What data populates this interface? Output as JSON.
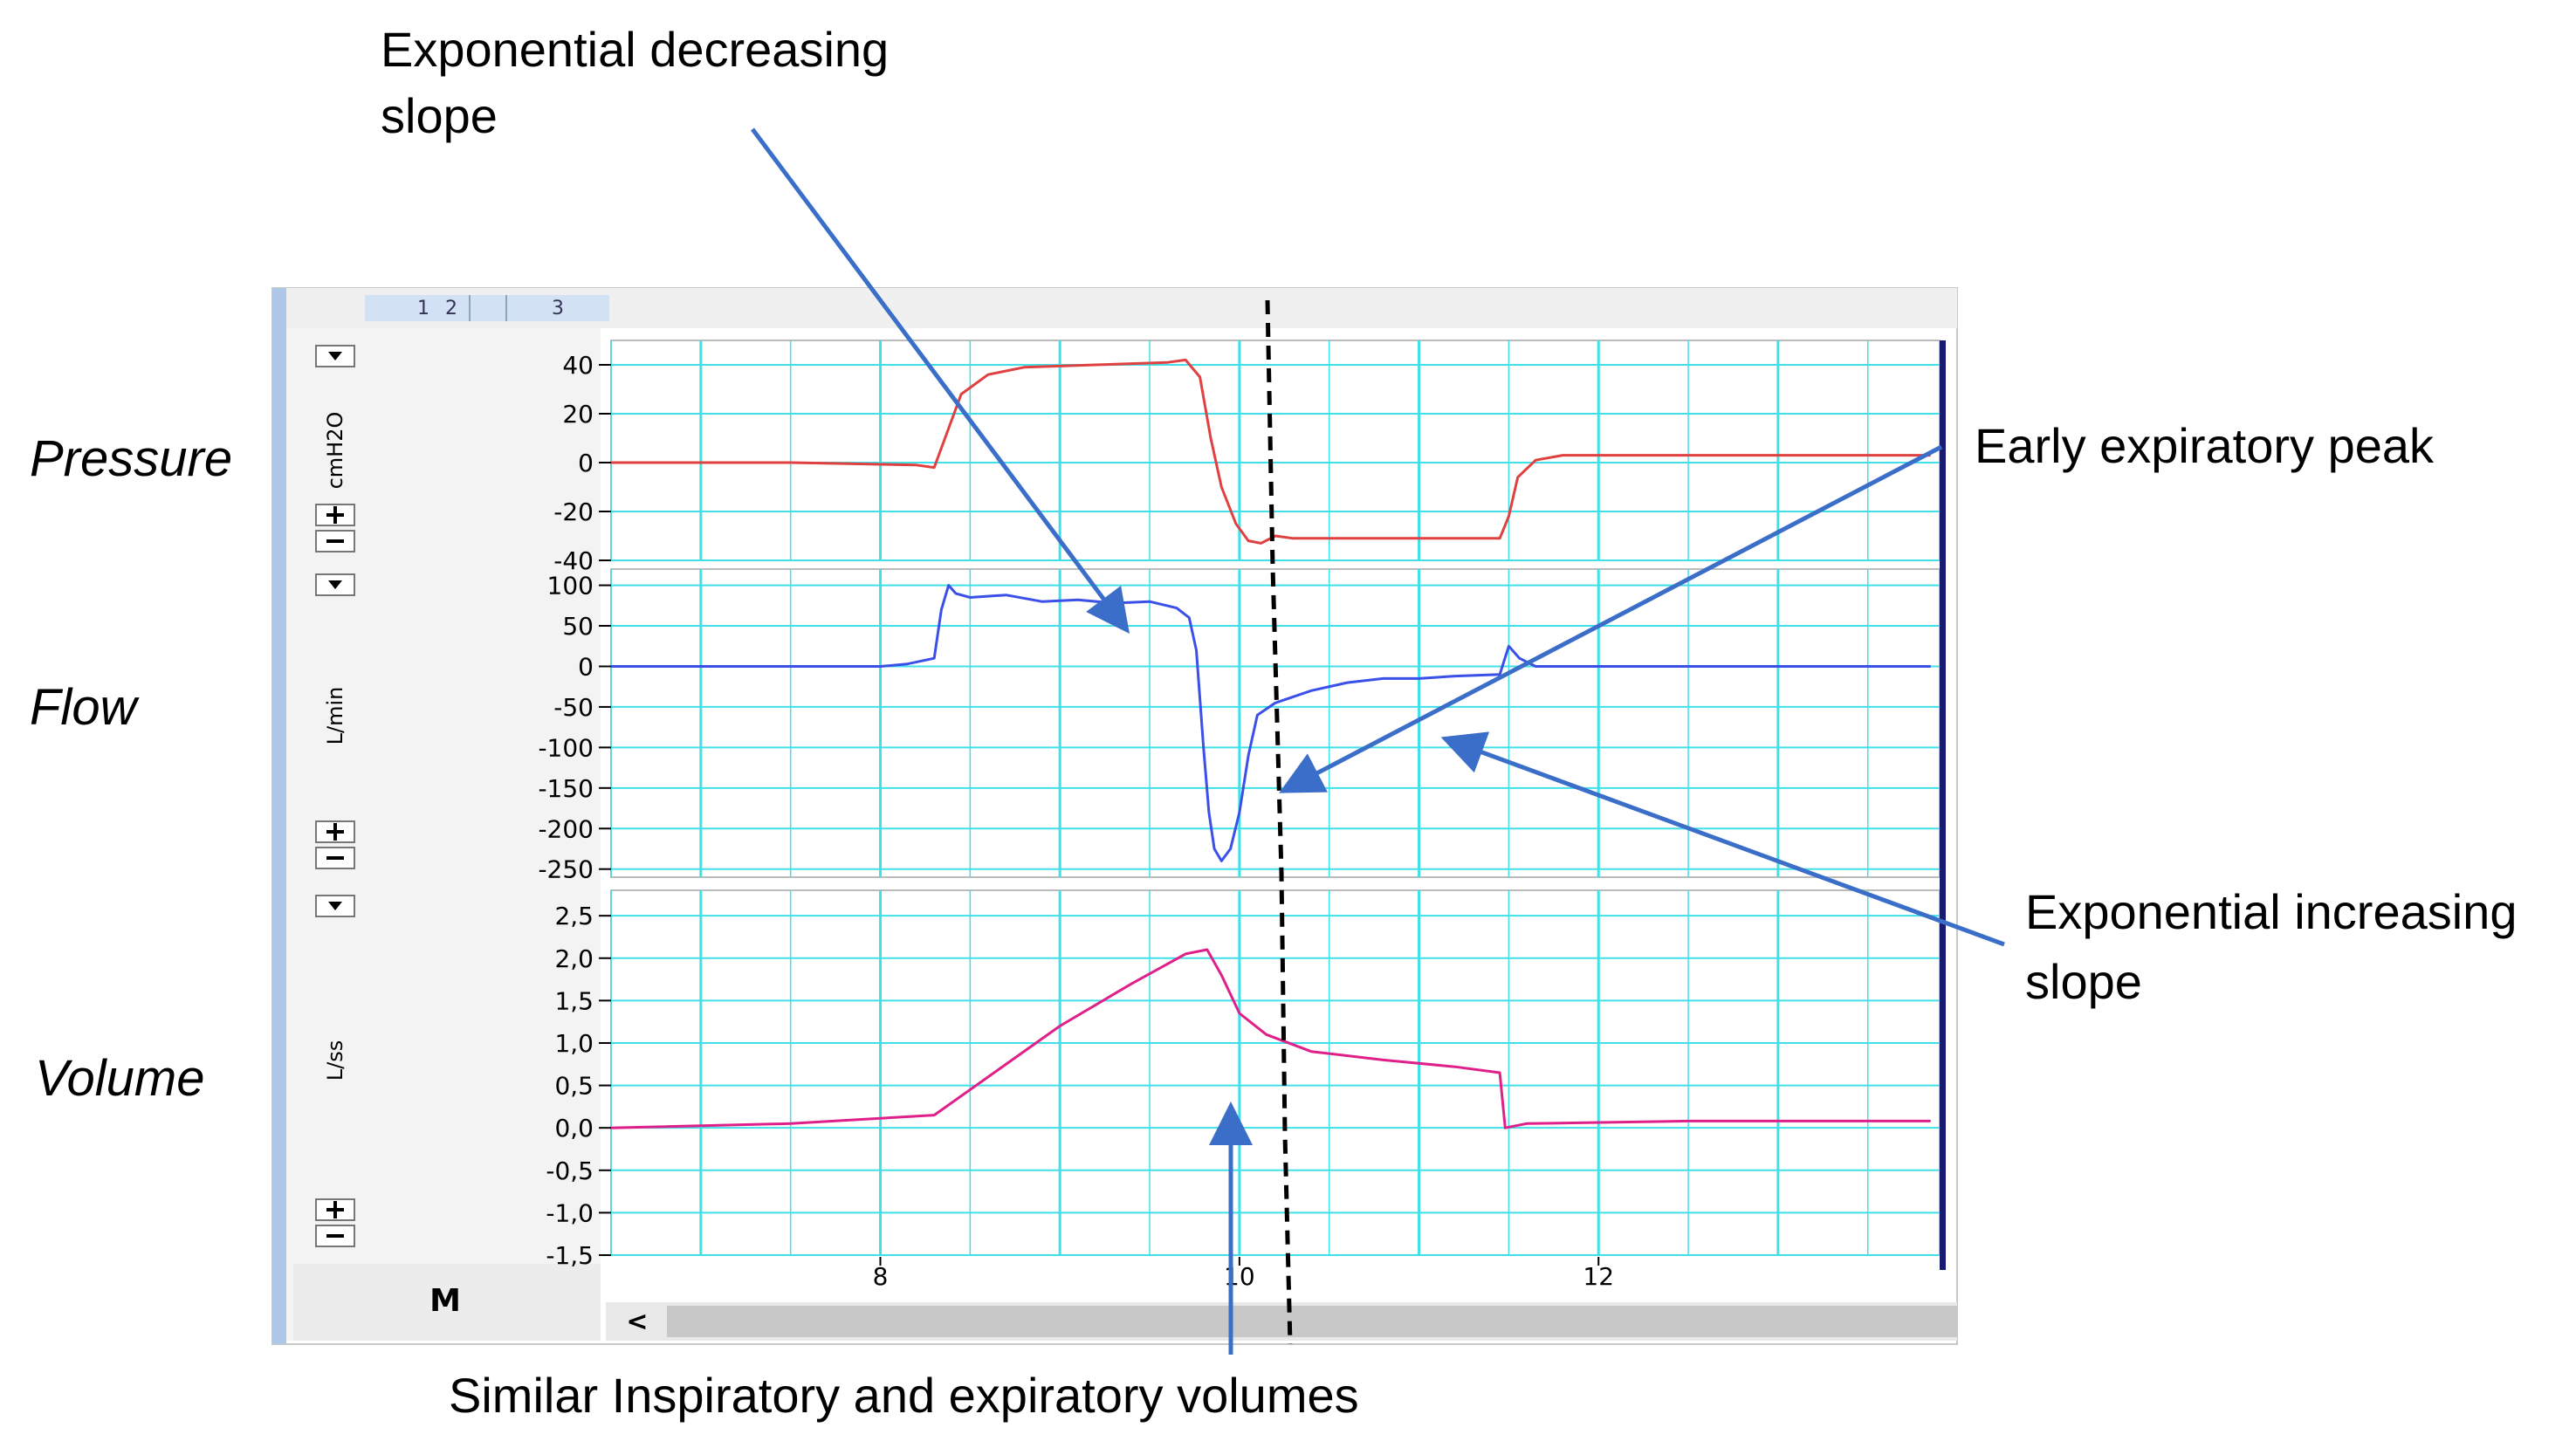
{
  "toolbar": {
    "tabs": [
      "1",
      "2",
      "3"
    ],
    "scroll_left": "<"
  },
  "side_labels": [
    "Pressure",
    "Flow",
    "Volume"
  ],
  "annotations": {
    "top": [
      "Exponential decreasing",
      "slope"
    ],
    "peak": "Early expiratory peak",
    "increasing": [
      "Exponential increasing",
      "slope"
    ],
    "bottom": "Similar Inspiratory and expiratory volumes"
  },
  "colors": {
    "pressure": "#e04040",
    "flow": "#3a50e8",
    "volume": "#e0208a",
    "grid": "#40e0e8",
    "arrow": "#3a6ec8",
    "right_bar": "#1a1a70"
  },
  "chart_data": {
    "type": "line",
    "x": {
      "ticks": [
        8,
        10,
        12
      ],
      "labels": [
        "8",
        "10",
        "12"
      ],
      "range": [
        6.5,
        13.9
      ]
    },
    "panels": [
      {
        "name": "pressure",
        "unit": "cmH2O",
        "ylim": [
          -40,
          50
        ],
        "ticks": [
          40,
          20,
          0,
          -20,
          -40
        ],
        "tick_labels": [
          "40",
          "20",
          "0",
          "-20",
          "-40"
        ],
        "series": [
          {
            "color": "pressure",
            "points": [
              [
                6.5,
                0
              ],
              [
                7.5,
                0
              ],
              [
                8.2,
                -1
              ],
              [
                8.3,
                -2
              ],
              [
                8.36,
                10
              ],
              [
                8.45,
                28
              ],
              [
                8.6,
                36
              ],
              [
                8.8,
                39
              ],
              [
                9.2,
                40
              ],
              [
                9.6,
                41
              ],
              [
                9.7,
                42
              ],
              [
                9.78,
                35
              ],
              [
                9.84,
                10
              ],
              [
                9.9,
                -10
              ],
              [
                9.98,
                -25
              ],
              [
                10.05,
                -32
              ],
              [
                10.12,
                -33
              ],
              [
                10.2,
                -30
              ],
              [
                10.3,
                -31
              ],
              [
                10.5,
                -31
              ],
              [
                11.0,
                -31
              ],
              [
                11.45,
                -31
              ],
              [
                11.5,
                -22
              ],
              [
                11.55,
                -6
              ],
              [
                11.65,
                1
              ],
              [
                11.8,
                3
              ],
              [
                12.5,
                3
              ],
              [
                13.5,
                3
              ],
              [
                13.85,
                3
              ]
            ]
          }
        ]
      },
      {
        "name": "flow",
        "unit": "L/min",
        "ylim": [
          -260,
          120
        ],
        "ticks": [
          100,
          50,
          0,
          -50,
          -100,
          -150,
          -200,
          -250
        ],
        "tick_labels": [
          "100",
          "50",
          "0",
          "-50",
          "-100",
          "-150",
          "-200",
          "-250"
        ],
        "series": [
          {
            "color": "flow",
            "points": [
              [
                6.5,
                0
              ],
              [
                7.5,
                0
              ],
              [
                8.0,
                0
              ],
              [
                8.15,
                3
              ],
              [
                8.3,
                10
              ],
              [
                8.34,
                70
              ],
              [
                8.38,
                100
              ],
              [
                8.42,
                90
              ],
              [
                8.5,
                85
              ],
              [
                8.7,
                88
              ],
              [
                8.9,
                80
              ],
              [
                9.1,
                82
              ],
              [
                9.3,
                78
              ],
              [
                9.5,
                80
              ],
              [
                9.65,
                72
              ],
              [
                9.72,
                60
              ],
              [
                9.76,
                20
              ],
              [
                9.8,
                -100
              ],
              [
                9.83,
                -180
              ],
              [
                9.86,
                -225
              ],
              [
                9.9,
                -240
              ],
              [
                9.95,
                -225
              ],
              [
                10.0,
                -180
              ],
              [
                10.05,
                -110
              ],
              [
                10.1,
                -60
              ],
              [
                10.2,
                -45
              ],
              [
                10.4,
                -30
              ],
              [
                10.6,
                -20
              ],
              [
                10.8,
                -15
              ],
              [
                11.0,
                -15
              ],
              [
                11.2,
                -12
              ],
              [
                11.45,
                -10
              ],
              [
                11.5,
                25
              ],
              [
                11.56,
                10
              ],
              [
                11.65,
                0
              ],
              [
                12.0,
                0
              ],
              [
                12.5,
                0
              ],
              [
                13.0,
                0
              ],
              [
                13.85,
                0
              ]
            ]
          }
        ]
      },
      {
        "name": "volume",
        "unit": "L/ss",
        "ylim": [
          -1.5,
          2.8
        ],
        "ticks": [
          2.5,
          2.0,
          1.5,
          1.0,
          0.5,
          0.0,
          -0.5,
          -1.0,
          -1.5
        ],
        "tick_labels": [
          "2,5",
          "2,0",
          "1,5",
          "1,0",
          "0,5",
          "0,0",
          "-0,5",
          "-1,0",
          "-1,5"
        ],
        "series": [
          {
            "color": "volume",
            "points": [
              [
                6.5,
                0
              ],
              [
                7.5,
                0.05
              ],
              [
                8.3,
                0.15
              ],
              [
                8.6,
                0.6
              ],
              [
                9.0,
                1.2
              ],
              [
                9.4,
                1.7
              ],
              [
                9.7,
                2.05
              ],
              [
                9.82,
                2.1
              ],
              [
                9.9,
                1.8
              ],
              [
                10.0,
                1.35
              ],
              [
                10.15,
                1.1
              ],
              [
                10.4,
                0.9
              ],
              [
                10.8,
                0.8
              ],
              [
                11.2,
                0.72
              ],
              [
                11.45,
                0.65
              ],
              [
                11.48,
                0.0
              ],
              [
                11.6,
                0.05
              ],
              [
                12.5,
                0.08
              ],
              [
                13.85,
                0.08
              ]
            ]
          }
        ]
      }
    ]
  }
}
